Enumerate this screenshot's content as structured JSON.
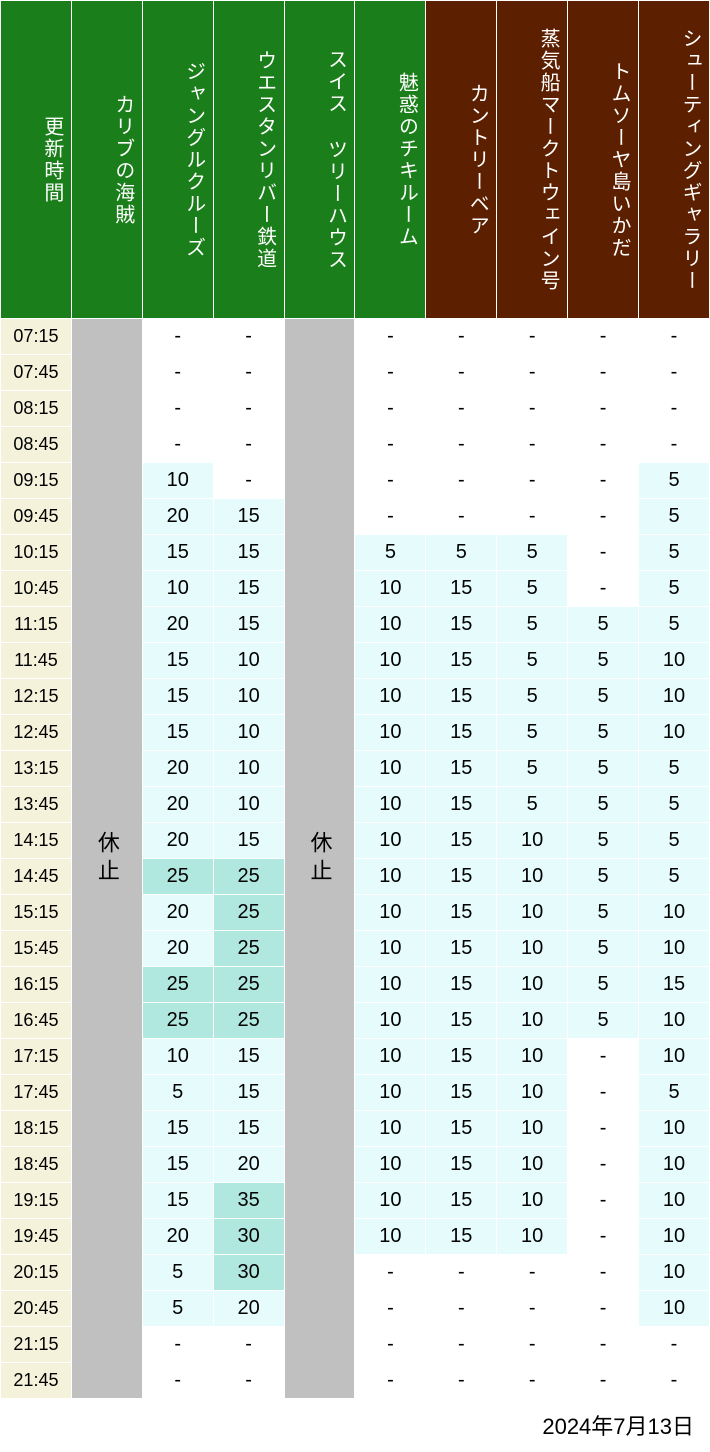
{
  "date_label": "2024年7月13日",
  "closed_label": "休止",
  "colors": {
    "header_green": "#1a7e1a",
    "header_brown": "#5c1f00",
    "time_bg": "#f5f2dc",
    "closed_bg": "#c0c0c0",
    "cell_white": "#ffffff",
    "cell_light": "#e6fcfc",
    "cell_mid": "#b0e8e0",
    "border": "#ffffff",
    "text": "#000000",
    "header_text": "#ffffff"
  },
  "thresholds": {
    "mid_min": 25
  },
  "columns": [
    {
      "id": "time",
      "label": "更新時間",
      "type": "time",
      "header_class": "time-header"
    },
    {
      "id": "c1",
      "label": "カリブの海賊",
      "type": "closed",
      "header_class": "green-header"
    },
    {
      "id": "c2",
      "label": "ジャングルクルーズ",
      "type": "data",
      "header_class": "green-header"
    },
    {
      "id": "c3",
      "label": "ウエスタンリバー鉄道",
      "type": "data",
      "header_class": "green-header"
    },
    {
      "id": "c4",
      "label": "スイス ツリーハウス",
      "type": "closed",
      "header_class": "green-header"
    },
    {
      "id": "c5",
      "label": "魅惑のチキルーム",
      "type": "data",
      "header_class": "green-header"
    },
    {
      "id": "c6",
      "label": "カントリーベア",
      "type": "data",
      "header_class": "brown-header"
    },
    {
      "id": "c7",
      "label": "蒸気船マークトウェイン号",
      "type": "data",
      "header_class": "brown-header"
    },
    {
      "id": "c8",
      "label": "トムソーヤ島いかだ",
      "type": "data",
      "header_class": "brown-header"
    },
    {
      "id": "c9",
      "label": "シューティングギャラリー",
      "type": "data",
      "header_class": "brown-header"
    }
  ],
  "times": [
    "07:15",
    "07:45",
    "08:15",
    "08:45",
    "09:15",
    "09:45",
    "10:15",
    "10:45",
    "11:15",
    "11:45",
    "12:15",
    "12:45",
    "13:15",
    "13:45",
    "14:15",
    "14:45",
    "15:15",
    "15:45",
    "16:15",
    "16:45",
    "17:15",
    "17:45",
    "18:15",
    "18:45",
    "19:15",
    "19:45",
    "20:15",
    "20:45",
    "21:15",
    "21:45"
  ],
  "data": {
    "c2": [
      "-",
      "-",
      "-",
      "-",
      "10",
      "20",
      "15",
      "10",
      "20",
      "15",
      "15",
      "15",
      "20",
      "20",
      "20",
      "25",
      "20",
      "20",
      "25",
      "25",
      "10",
      "5",
      "15",
      "15",
      "15",
      "20",
      "5",
      "5",
      "-",
      "-"
    ],
    "c3": [
      "-",
      "-",
      "-",
      "-",
      "-",
      "15",
      "15",
      "15",
      "15",
      "10",
      "10",
      "10",
      "10",
      "10",
      "15",
      "25",
      "25",
      "25",
      "25",
      "25",
      "15",
      "15",
      "15",
      "20",
      "35",
      "30",
      "30",
      "20",
      "-",
      "-"
    ],
    "c5": [
      "-",
      "-",
      "-",
      "-",
      "-",
      "-",
      "5",
      "10",
      "10",
      "10",
      "10",
      "10",
      "10",
      "10",
      "10",
      "10",
      "10",
      "10",
      "10",
      "10",
      "10",
      "10",
      "10",
      "10",
      "10",
      "10",
      "-",
      "-",
      "-",
      "-"
    ],
    "c6": [
      "-",
      "-",
      "-",
      "-",
      "-",
      "-",
      "5",
      "15",
      "15",
      "15",
      "15",
      "15",
      "15",
      "15",
      "15",
      "15",
      "15",
      "15",
      "15",
      "15",
      "15",
      "15",
      "15",
      "15",
      "15",
      "15",
      "-",
      "-",
      "-",
      "-"
    ],
    "c7": [
      "-",
      "-",
      "-",
      "-",
      "-",
      "-",
      "5",
      "5",
      "5",
      "5",
      "5",
      "5",
      "5",
      "5",
      "10",
      "10",
      "10",
      "10",
      "10",
      "10",
      "10",
      "10",
      "10",
      "10",
      "10",
      "10",
      "-",
      "-",
      "-",
      "-"
    ],
    "c8": [
      "-",
      "-",
      "-",
      "-",
      "-",
      "-",
      "-",
      "-",
      "5",
      "5",
      "5",
      "5",
      "5",
      "5",
      "5",
      "5",
      "5",
      "5",
      "5",
      "5",
      "-",
      "-",
      "-",
      "-",
      "-",
      "-",
      "-",
      "-",
      "-",
      "-"
    ],
    "c9": [
      "-",
      "-",
      "-",
      "-",
      "5",
      "5",
      "5",
      "5",
      "5",
      "10",
      "10",
      "10",
      "5",
      "5",
      "5",
      "5",
      "10",
      "10",
      "15",
      "10",
      "10",
      "5",
      "10",
      "10",
      "10",
      "10",
      "10",
      "10",
      "-",
      "-"
    ]
  }
}
